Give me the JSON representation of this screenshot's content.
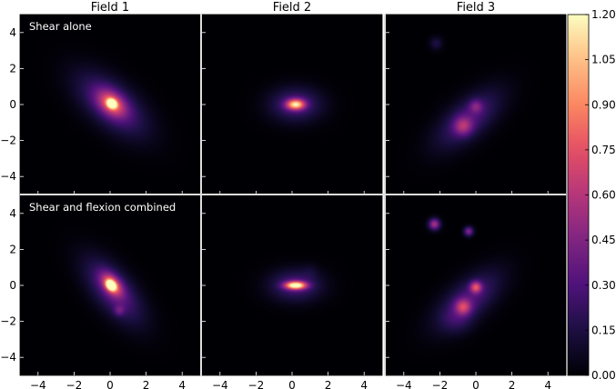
{
  "chart_data": {
    "type": "heatmap",
    "layout": {
      "rows": 2,
      "columns": 3
    },
    "column_titles": [
      "Field 1",
      "Field 2",
      "Field 3"
    ],
    "row_annotations": [
      "Shear alone",
      "Shear and flexion combined"
    ],
    "x_ticks": [
      -4,
      -2,
      0,
      2,
      4
    ],
    "y_ticks": [
      4,
      2,
      0,
      -2,
      -4
    ],
    "xlim": [
      -5,
      5
    ],
    "ylim": [
      -5,
      5
    ],
    "colormap": "magma",
    "colorbar": {
      "ticks": [
        "1.20",
        "1.05",
        "0.90",
        "0.75",
        "0.60",
        "0.45",
        "0.30",
        "0.15",
        "0.00"
      ],
      "range": [
        0,
        1.2
      ]
    },
    "panels": [
      {
        "row": 0,
        "col": 0,
        "field": "Field 1",
        "condition": "Shear alone",
        "sources": [
          {
            "x": 0.1,
            "y": 0.0,
            "sx": 1.6,
            "sy": 0.8,
            "angle": -40,
            "amp": 0.35
          },
          {
            "x": 0.1,
            "y": 0.05,
            "sx": 0.6,
            "sy": 0.4,
            "angle": -40,
            "amp": 0.55
          },
          {
            "x": 0.1,
            "y": 0.05,
            "sx": 0.18,
            "sy": 0.15,
            "angle": -40,
            "amp": 1.2
          }
        ]
      },
      {
        "row": 0,
        "col": 1,
        "field": "Field 2",
        "condition": "Shear alone",
        "sources": [
          {
            "x": 0.2,
            "y": 0.0,
            "sx": 1.0,
            "sy": 0.65,
            "angle": 0,
            "amp": 0.3
          },
          {
            "x": 0.2,
            "y": 0.0,
            "sx": 0.35,
            "sy": 0.2,
            "angle": 0,
            "amp": 0.9
          }
        ]
      },
      {
        "row": 0,
        "col": 2,
        "field": "Field 3",
        "condition": "Shear alone",
        "sources": [
          {
            "x": -0.4,
            "y": -0.8,
            "sx": 1.5,
            "sy": 0.7,
            "angle": 40,
            "amp": 0.3
          },
          {
            "x": -0.7,
            "y": -1.2,
            "sx": 0.35,
            "sy": 0.35,
            "angle": 0,
            "amp": 0.35
          },
          {
            "x": 0.0,
            "y": -0.1,
            "sx": 0.25,
            "sy": 0.25,
            "angle": 0,
            "amp": 0.25
          },
          {
            "x": -2.2,
            "y": 3.4,
            "sx": 0.25,
            "sy": 0.25,
            "angle": 0,
            "amp": 0.15
          }
        ]
      },
      {
        "row": 1,
        "col": 0,
        "field": "Field 1",
        "condition": "Shear and flexion combined",
        "sources": [
          {
            "x": 0.2,
            "y": -0.3,
            "sx": 1.5,
            "sy": 0.7,
            "angle": -50,
            "amp": 0.35
          },
          {
            "x": 0.1,
            "y": 0.05,
            "sx": 0.5,
            "sy": 0.3,
            "angle": -50,
            "amp": 0.6
          },
          {
            "x": 0.05,
            "y": 0.0,
            "sx": 0.2,
            "sy": 0.15,
            "angle": -50,
            "amp": 1.2
          },
          {
            "x": 0.5,
            "y": -1.4,
            "sx": 0.2,
            "sy": 0.2,
            "angle": 0,
            "amp": 0.2
          }
        ]
      },
      {
        "row": 1,
        "col": 1,
        "field": "Field 2",
        "condition": "Shear and flexion combined",
        "sources": [
          {
            "x": 0.2,
            "y": 0.0,
            "sx": 1.0,
            "sy": 0.6,
            "angle": 0,
            "amp": 0.3
          },
          {
            "x": 0.2,
            "y": 0.0,
            "sx": 0.4,
            "sy": 0.15,
            "angle": 0,
            "amp": 1.1
          },
          {
            "x": 1.0,
            "y": 0.8,
            "sx": 0.3,
            "sy": 0.3,
            "angle": 0,
            "amp": 0.05
          }
        ]
      },
      {
        "row": 1,
        "col": 2,
        "field": "Field 3",
        "condition": "Shear and flexion combined",
        "sources": [
          {
            "x": -0.4,
            "y": -0.8,
            "sx": 1.5,
            "sy": 0.7,
            "angle": 40,
            "amp": 0.3
          },
          {
            "x": -0.7,
            "y": -1.2,
            "sx": 0.3,
            "sy": 0.3,
            "angle": 0,
            "amp": 0.45
          },
          {
            "x": 0.0,
            "y": -0.1,
            "sx": 0.22,
            "sy": 0.22,
            "angle": 0,
            "amp": 0.55
          },
          {
            "x": -2.3,
            "y": 3.4,
            "sx": 0.22,
            "sy": 0.22,
            "angle": 0,
            "amp": 0.55
          },
          {
            "x": -0.4,
            "y": 3.0,
            "sx": 0.18,
            "sy": 0.18,
            "angle": 0,
            "amp": 0.45
          },
          {
            "x": -1.0,
            "y": -2.0,
            "sx": 0.6,
            "sy": 0.5,
            "angle": 0,
            "amp": 0.1
          }
        ]
      }
    ]
  }
}
